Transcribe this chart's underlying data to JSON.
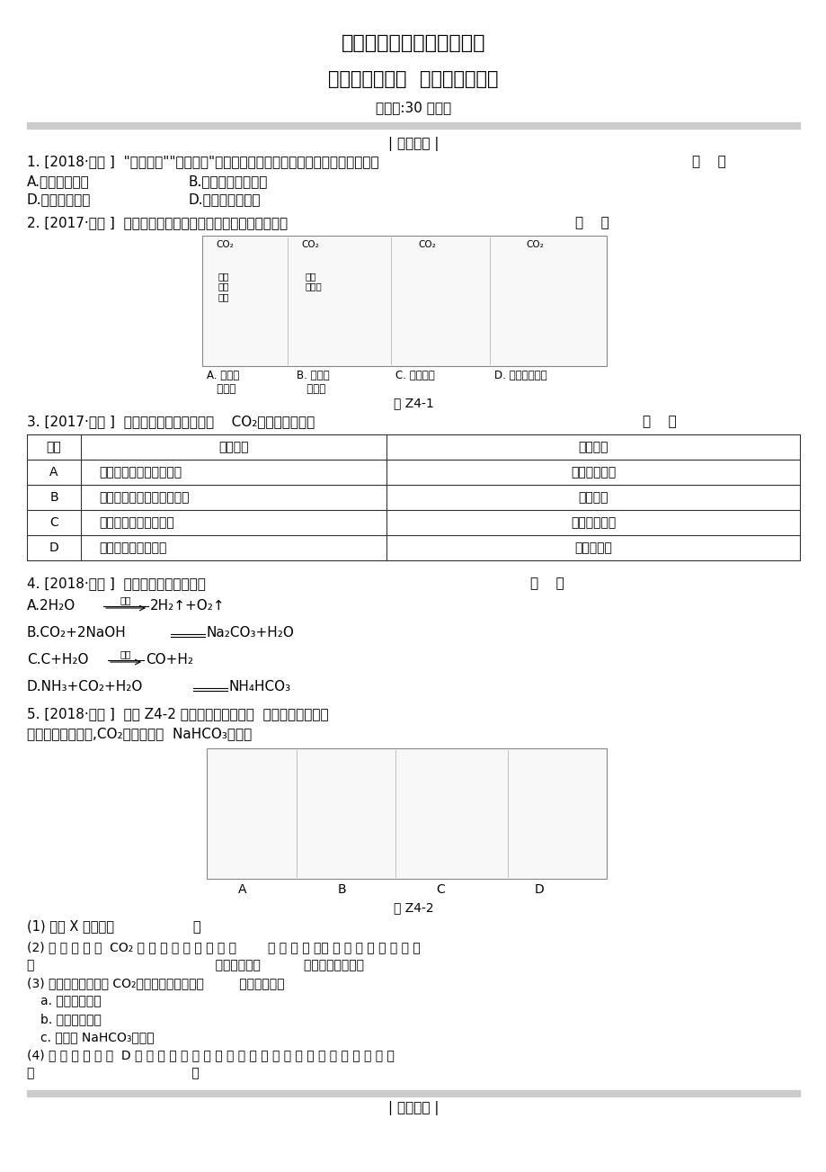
{
  "title1": "中考化学复习备考精品资料",
  "title2": "课时训练（四）  奇妙的二氧化碳",
  "title3": "（限时:30 分钟）",
  "section1": "| 夯实基础 |",
  "q1": "1. [2018·淮安 ]  \"绿色发展\"\"低碳生活\"等理念逐渐深入民心。下列做法值得提倡的是",
  "q1_bracket": "（    ）",
  "q1_A": "A.露天焚烧垃圾",
  "q1_B": "B.回收和利用废金属",
  "q1_D1": "D.填埋废旧电池",
  "q1_D2": "D.鼓励私家车出行",
  "q2": "2. [2017·台州 ]  下列实验现象只能反映二氧化碳物理性质的是",
  "q2_bracket": "（    ）",
  "fig1_label": "图 Z4-1",
  "fig1_A": "A. 紫色石\n蕊变红",
  "fig1_B": "B. 石灰水\n变浑浊",
  "fig1_C": "C. 蜡烛熄灭",
  "fig1_D": "D. 杠杆左高右低",
  "q3": "3. [2017·沈阳 ]  能证明某无色无味气体是    CO₂的操作及现象是",
  "q3_bracket": "（    ）",
  "table_headers": [
    "选项",
    "实验操作",
    "实验现象"
  ],
  "table_rows": [
    [
      "A",
      "将燃着的木条伸入集气瓶",
      "木条燃烧更旺"
    ],
    [
      "B",
      "将带火星的木条伸入集气瓶",
      "木条复燃"
    ],
    [
      "C",
      "将气体通入澄清石灰水",
      "石灰水变浑浊"
    ],
    [
      "D",
      "将气体通入蒸馏水中",
      "有气泡逸出"
    ]
  ],
  "q4": "4. [2018·广东 ]  下列属于分解反应的是",
  "q4_bracket": "（    ）",
  "q4_A_cond": "通电",
  "q4_C_cond": "高温",
  "q5": "5. [2018·安徽 ]  如图 Z4-2 是实验室中常见装置  ，回答下列问题。",
  "q5_info": "查阅资料：常温下,CO₂难溶于饱和  NaHCO₃溶液。",
  "fig2_label": "图 Z4-2",
  "q5_1": "(1) 仪器 X 的名称是                   。",
  "q5_2_pre": "(2) 实 验 室 制 取  CO₂ 应 选 用 的 发 生 装 置 是        （ 填 序 号 ）， 反 应 的 化 学 方 程 式",
  "q5_2_mid": "是                                              ，该反应属于           （填反应类型）。",
  "q5_3": "(3) 常温下，下列收集 CO₂的方法中不可行的是         （填序号）。",
  "q5_3a": "a. 向上排空气法",
  "q5_3b": "b. 向下排空气法",
  "q5_3c": "c. 排饱和 NaHCO₃溶液法",
  "q5_4_pre": "(4) 某 同 学 进 行 图  D 所 示 的 操 作 时 ， 观 察 到 高 的 蜡 烛 先 熄 灭 ， 其 原 因 可 能",
  "q5_4_mid": "是                                        。",
  "section2": "| 能力提升 |",
  "bg_color": "#ffffff",
  "text_color": "#000000",
  "band_color": "#cccccc"
}
